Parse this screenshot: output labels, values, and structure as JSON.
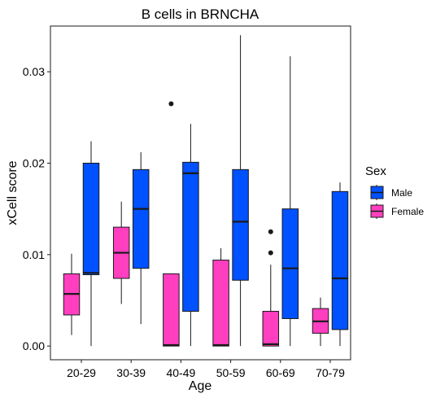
{
  "colors": {
    "male": "#0051ff",
    "female": "#ff3fbf",
    "outline": "#1a1a1a"
  },
  "chart_data": {
    "type": "boxplot",
    "title": "B cells in BRNCHA",
    "xlabel": "Age",
    "ylabel": "xCell score",
    "ylim": [
      -0.0015,
      0.035
    ],
    "yticks": [
      "0.00",
      "0.01",
      "0.02",
      "0.03"
    ],
    "ytick_values": [
      0.0,
      0.01,
      0.02,
      0.03
    ],
    "categories": [
      "20-29",
      "30-39",
      "40-49",
      "50-59",
      "60-69",
      "70-79"
    ],
    "grid": false,
    "legend": {
      "title": "Sex",
      "placement": "right",
      "entries": [
        {
          "label": "Male",
          "color": "#0051ff"
        },
        {
          "label": "Female",
          "color": "#ff3fbf"
        }
      ]
    },
    "series": [
      {
        "name": "Female",
        "color": "#ff3fbf",
        "boxes": [
          {
            "whisker_low": 0.0012,
            "q1": 0.0034,
            "median": 0.0057,
            "q3": 0.0079,
            "whisker_high": 0.0101,
            "outliers": []
          },
          {
            "whisker_low": 0.0046,
            "q1": 0.0074,
            "median": 0.0102,
            "q3": 0.013,
            "whisker_high": 0.0158,
            "outliers": []
          },
          {
            "whisker_low": 0.0,
            "q1": 0.0,
            "median": 0.0001,
            "q3": 0.0079,
            "whisker_high": 0.0079,
            "outliers": [
              0.0265
            ]
          },
          {
            "whisker_low": 0.0,
            "q1": 0.0,
            "median": 0.0001,
            "q3": 0.0094,
            "whisker_high": 0.0107,
            "outliers": []
          },
          {
            "whisker_low": 0.0,
            "q1": 0.0,
            "median": 0.0002,
            "q3": 0.0038,
            "whisker_high": 0.0089,
            "outliers": [
              0.0102,
              0.0125
            ]
          },
          {
            "whisker_low": 0.0,
            "q1": 0.0014,
            "median": 0.0027,
            "q3": 0.0041,
            "whisker_high": 0.0053,
            "outliers": []
          }
        ]
      },
      {
        "name": "Male",
        "color": "#0051ff",
        "boxes": [
          {
            "whisker_low": 0.0,
            "q1": 0.0078,
            "median": 0.008,
            "q3": 0.02,
            "whisker_high": 0.0224,
            "outliers": []
          },
          {
            "whisker_low": 0.0024,
            "q1": 0.0085,
            "median": 0.015,
            "q3": 0.0193,
            "whisker_high": 0.0212,
            "outliers": []
          },
          {
            "whisker_low": 0.0,
            "q1": 0.0038,
            "median": 0.0189,
            "q3": 0.0201,
            "whisker_high": 0.0243,
            "outliers": []
          },
          {
            "whisker_low": 0.0,
            "q1": 0.0072,
            "median": 0.0136,
            "q3": 0.0193,
            "whisker_high": 0.034,
            "outliers": []
          },
          {
            "whisker_low": 0.0,
            "q1": 0.003,
            "median": 0.0085,
            "q3": 0.015,
            "whisker_high": 0.0317,
            "outliers": []
          },
          {
            "whisker_low": 0.0,
            "q1": 0.0018,
            "median": 0.0074,
            "q3": 0.0169,
            "whisker_high": 0.0179,
            "outliers": []
          }
        ]
      }
    ]
  }
}
